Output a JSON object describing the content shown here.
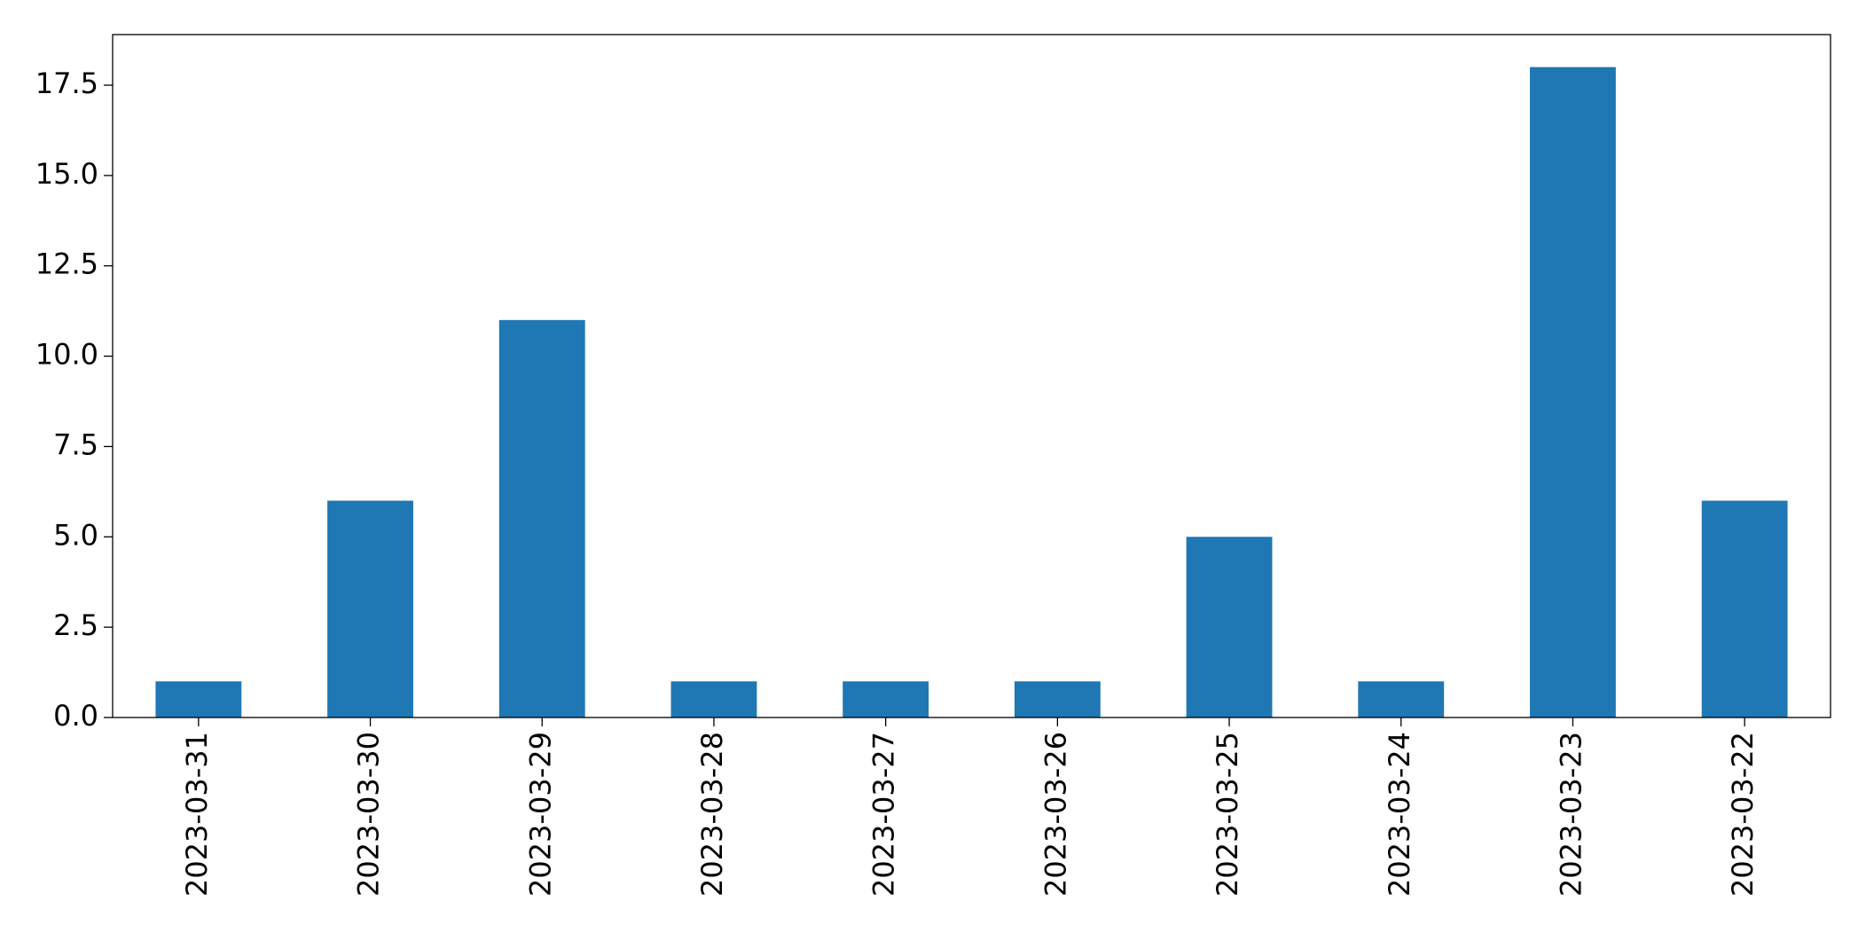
{
  "chart_data": {
    "type": "bar",
    "categories": [
      "2023-03-31",
      "2023-03-30",
      "2023-03-29",
      "2023-03-28",
      "2023-03-27",
      "2023-03-26",
      "2023-03-25",
      "2023-03-24",
      "2023-03-23",
      "2023-03-22"
    ],
    "values": [
      1,
      6,
      11,
      1,
      1,
      1,
      5,
      1,
      18,
      6
    ],
    "color": "#1f77b4",
    "ylim": [
      0,
      18.9
    ],
    "yticks": [
      {
        "value": 0,
        "label": "0.0"
      },
      2.5,
      {
        "value": 5,
        "label": "5.0"
      },
      7.5,
      {
        "value": 10,
        "label": "10.0"
      },
      12.5,
      {
        "value": 15,
        "label": "15.0"
      },
      17.5
    ],
    "grid": false
  }
}
